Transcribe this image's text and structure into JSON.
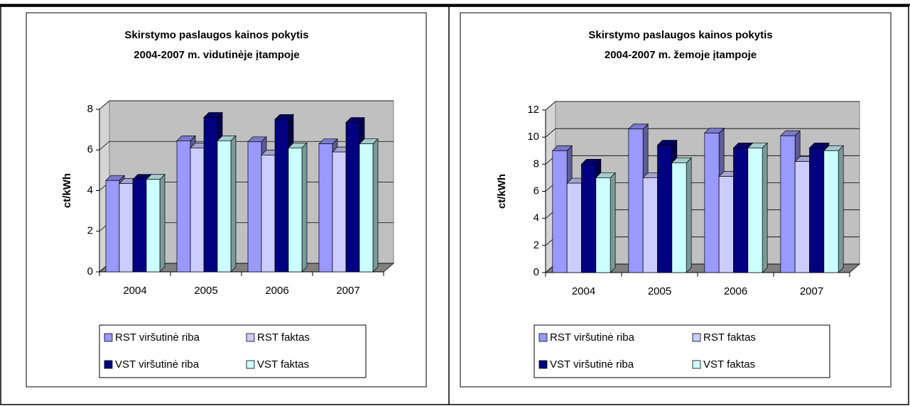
{
  "chart_data": [
    {
      "type": "bar3d",
      "title": [
        "Skirstymo paslaugos kainos pokytis",
        "2004-2007   m. vidutinėje įtampoje"
      ],
      "y_label": "ct/kWh",
      "categories": [
        "2004",
        "2005",
        "2006",
        "2007"
      ],
      "series": [
        {
          "name": "RST viršutinė riba",
          "color": "#9999ff",
          "values": [
            4.5,
            6.45,
            6.4,
            6.3
          ]
        },
        {
          "name": "RST faktas",
          "color": "#ccccff",
          "values": [
            4.35,
            6.1,
            5.75,
            5.9
          ]
        },
        {
          "name": "VST viršutinė riba",
          "color": "#000080",
          "values": [
            4.55,
            7.6,
            7.5,
            7.35
          ]
        },
        {
          "name": "VST faktas",
          "color": "#ccffff",
          "values": [
            4.55,
            6.45,
            6.1,
            6.3
          ]
        }
      ],
      "ylim": [
        0,
        8
      ],
      "yticks": [
        0,
        2,
        4,
        6,
        8
      ],
      "grid": true,
      "legend": "bottom"
    },
    {
      "type": "bar3d",
      "title": [
        "Skirstymo paslaugos kainos pokytis",
        "2004-2007 m. žemoje įtampoje"
      ],
      "y_label": "ct/kWh",
      "categories": [
        "2004",
        "2005",
        "2006",
        "2007"
      ],
      "series": [
        {
          "name": "RST viršutinė riba",
          "color": "#9999ff",
          "values": [
            9.0,
            10.6,
            10.3,
            10.1
          ]
        },
        {
          "name": "RST faktas",
          "color": "#ccccff",
          "values": [
            6.6,
            7.0,
            7.1,
            8.2
          ]
        },
        {
          "name": "VST viršutinė riba",
          "color": "#000080",
          "values": [
            8.0,
            9.4,
            9.2,
            9.2
          ]
        },
        {
          "name": "VST faktas",
          "color": "#ccffff",
          "values": [
            7.0,
            8.1,
            9.2,
            9.0
          ]
        }
      ],
      "ylim": [
        0,
        12
      ],
      "yticks": [
        0,
        2,
        4,
        6,
        8,
        10,
        12
      ],
      "grid": true,
      "legend": "bottom"
    }
  ]
}
